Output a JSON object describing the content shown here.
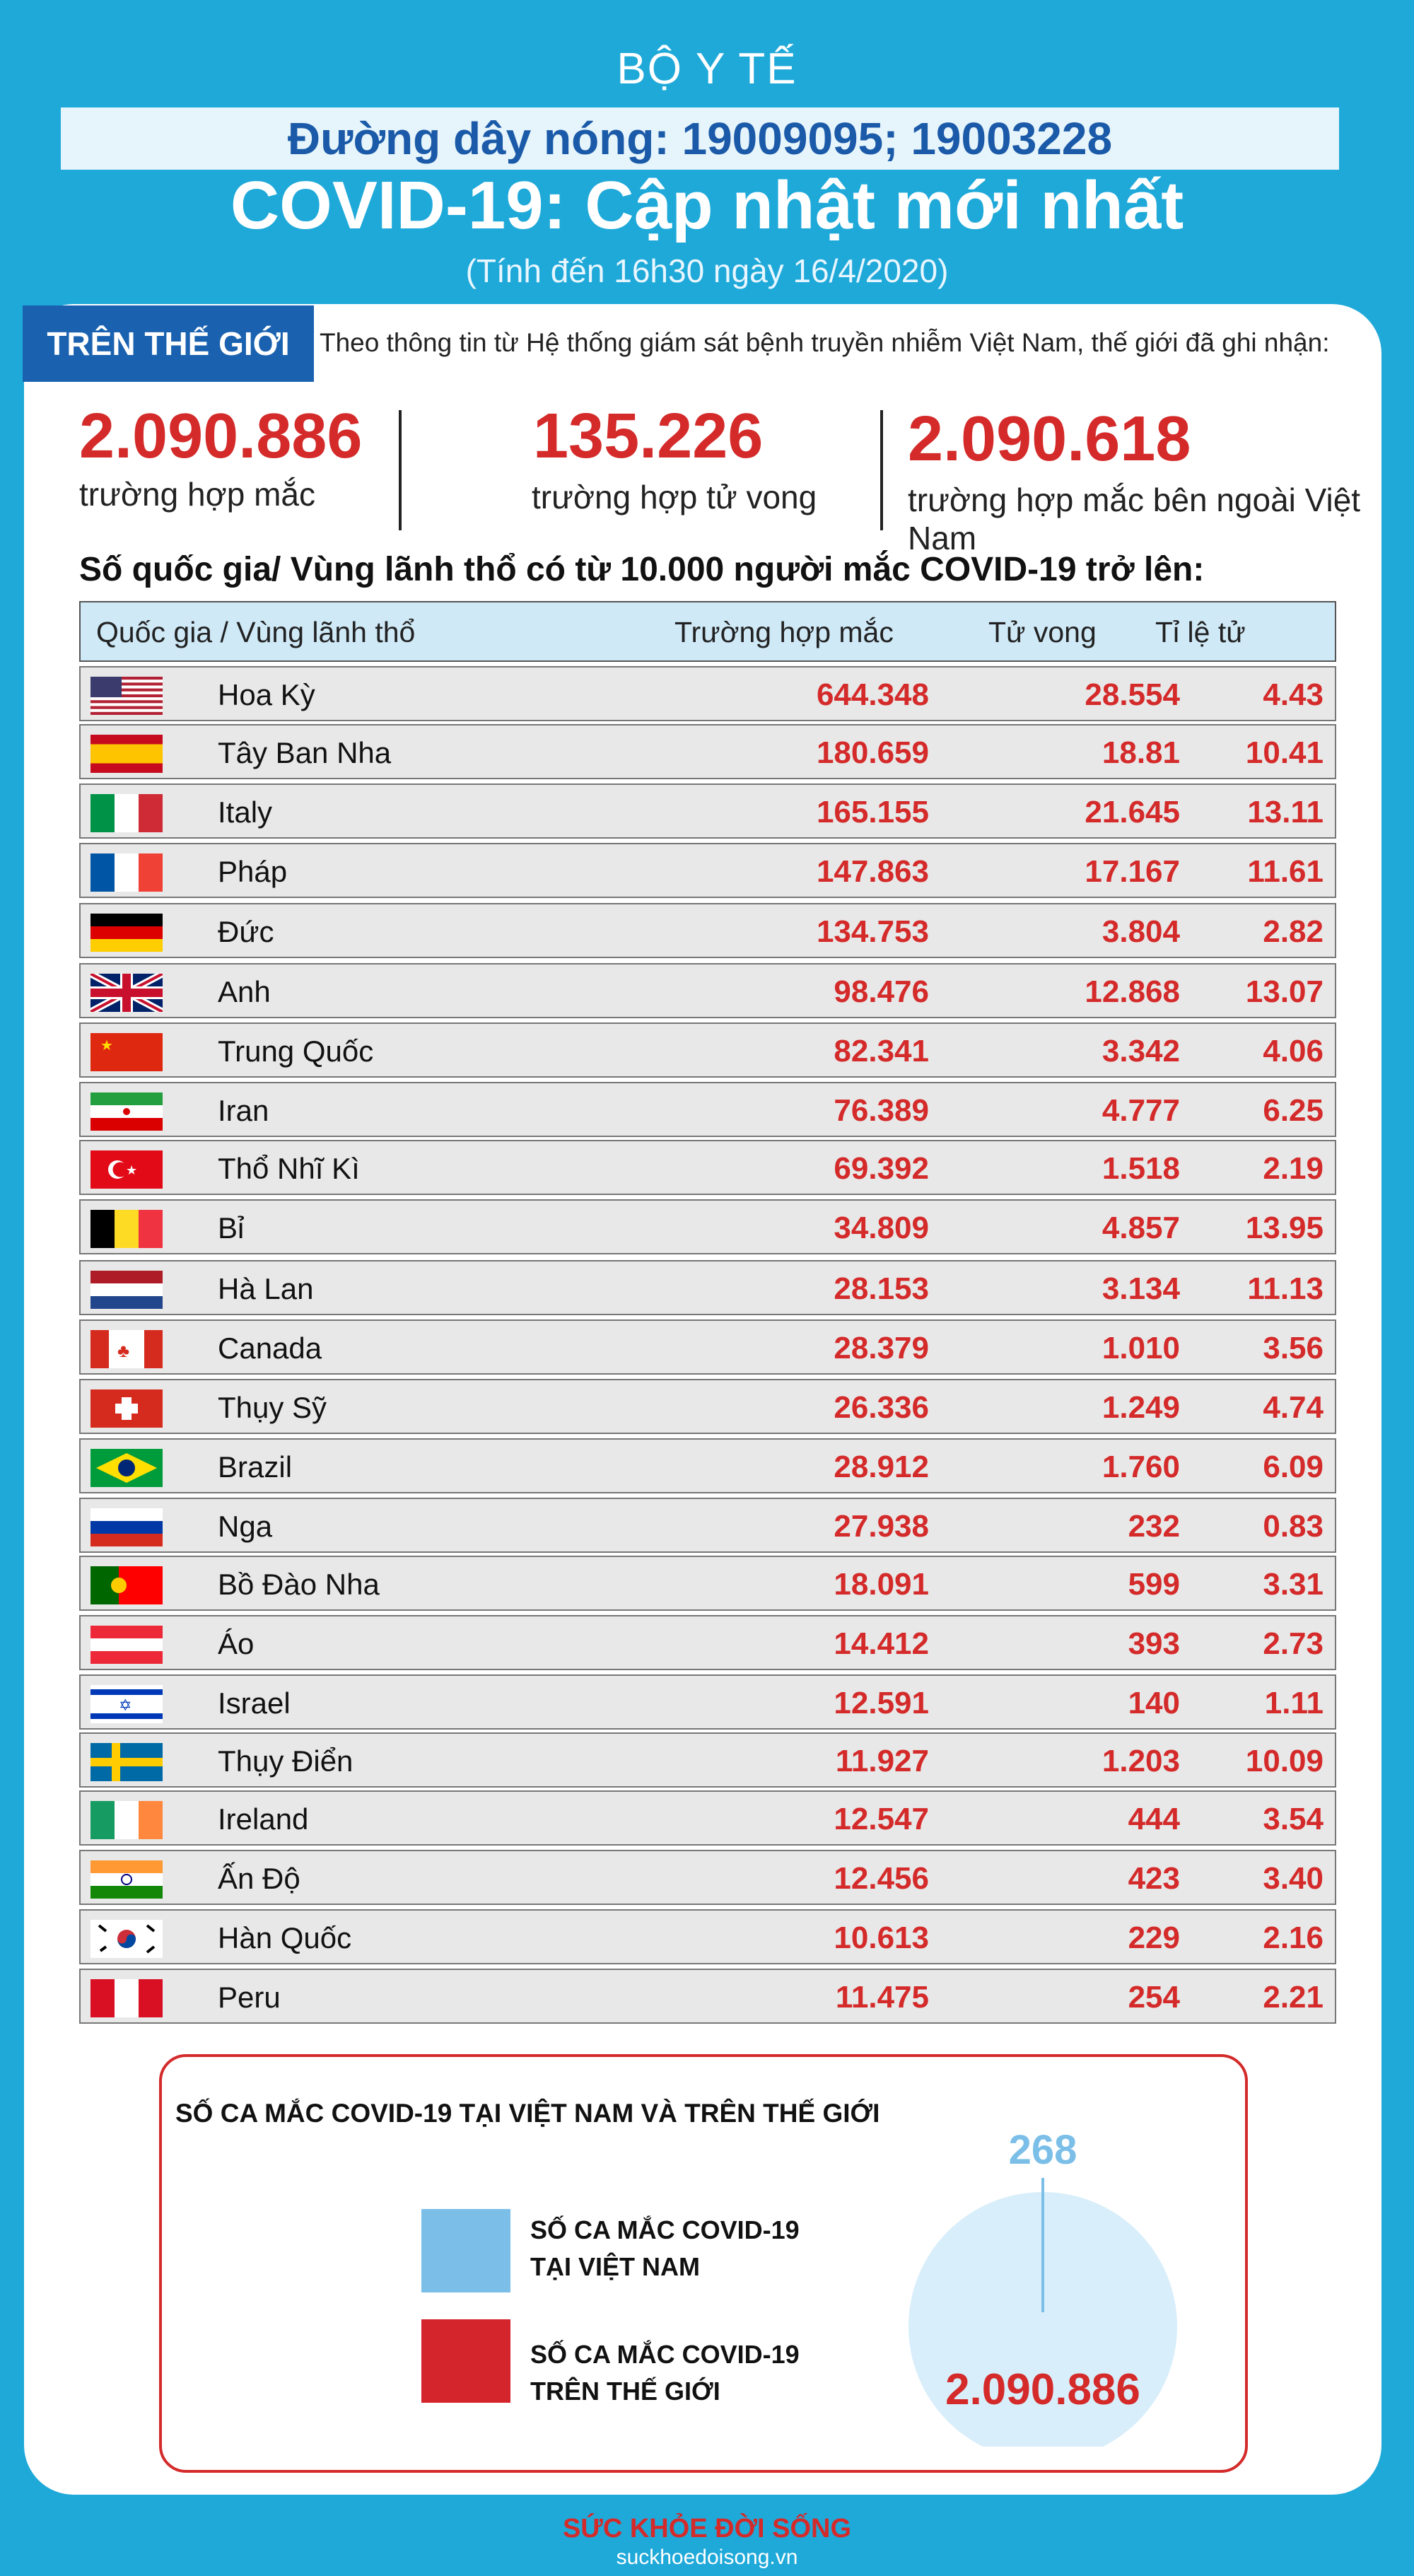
{
  "org": "BỘ Y TẾ",
  "hotline": "Đường dây nóng: 19009095; 19003228",
  "title": "COVID-19: Cập nhật mới nhất",
  "subtitle": "(Tính đến 16h30 ngày 16/4/2020)",
  "world_tab": "TRÊN THẾ GIỚI",
  "intro": "Theo thông tin từ Hệ thống giám sát bệnh truyền nhiễm Việt Nam, thế giới đã ghi nhận:",
  "stats": [
    {
      "value": "2.090.886",
      "label": "trường hợp mắc"
    },
    {
      "value": "135.226",
      "label": "trường hợp tử vong"
    },
    {
      "value": "2.090.618",
      "label": "trường hợp mắc bên ngoài Việt Nam"
    }
  ],
  "section_title": "Số quốc gia/ Vùng lãnh thổ có từ 10.000 người mắc COVID-19 trở lên:",
  "table": {
    "headers": [
      "Quốc gia / Vùng lãnh thổ",
      "Trường hợp mắc",
      "Tử vong",
      "Tỉ lệ tử vong(%)"
    ],
    "rows": [
      {
        "name": "Hoa Kỳ",
        "cases": "644.348",
        "deaths": "28.554",
        "rate": "4.43"
      },
      {
        "name": "Tây Ban Nha",
        "cases": "180.659",
        "deaths": "18.81",
        "rate": "10.41"
      },
      {
        "name": "Italy",
        "cases": "165.155",
        "deaths": "21.645",
        "rate": "13.11"
      },
      {
        "name": "Pháp",
        "cases": "147.863",
        "deaths": "17.167",
        "rate": "11.61"
      },
      {
        "name": "Đức",
        "cases": "134.753",
        "deaths": "3.804",
        "rate": "2.82"
      },
      {
        "name": "Anh",
        "cases": "98.476",
        "deaths": "12.868",
        "rate": "13.07"
      },
      {
        "name": "Trung Quốc",
        "cases": "82.341",
        "deaths": "3.342",
        "rate": "4.06"
      },
      {
        "name": "Iran",
        "cases": "76.389",
        "deaths": "4.777",
        "rate": "6.25"
      },
      {
        "name": "Thổ Nhĩ Kì",
        "cases": "69.392",
        "deaths": "1.518",
        "rate": "2.19"
      },
      {
        "name": "Bỉ",
        "cases": "34.809",
        "deaths": "4.857",
        "rate": "13.95"
      },
      {
        "name": "Hà Lan",
        "cases": "28.153",
        "deaths": "3.134",
        "rate": "11.13"
      },
      {
        "name": "Canada",
        "cases": "28.379",
        "deaths": "1.010",
        "rate": "3.56"
      },
      {
        "name": "Thụy Sỹ",
        "cases": "26.336",
        "deaths": "1.249",
        "rate": "4.74"
      },
      {
        "name": "Brazil",
        "cases": "28.912",
        "deaths": "1.760",
        "rate": "6.09"
      },
      {
        "name": "Nga",
        "cases": "27.938",
        "deaths": "232",
        "rate": "0.83"
      },
      {
        "name": "Bồ Đào Nha",
        "cases": "18.091",
        "deaths": "599",
        "rate": "3.31"
      },
      {
        "name": "Áo",
        "cases": "14.412",
        "deaths": "393",
        "rate": "2.73"
      },
      {
        "name": "Israel",
        "cases": "12.591",
        "deaths": "140",
        "rate": "1.11"
      },
      {
        "name": "Thụy Điển",
        "cases": "11.927",
        "deaths": "1.203",
        "rate": "10.09"
      },
      {
        "name": "Ireland",
        "cases": "12.547",
        "deaths": "444",
        "rate": "3.54"
      },
      {
        "name": "Ấn Độ",
        "cases": "12.456",
        "deaths": "423",
        "rate": "3.40"
      },
      {
        "name": "Hàn Quốc",
        "cases": "10.613",
        "deaths": "229",
        "rate": "2.16"
      },
      {
        "name": "Peru",
        "cases": "11.475",
        "deaths": "254",
        "rate": "2.21"
      }
    ]
  },
  "comparison": {
    "title": "SỐ CA MẮC COVID-19 TẠI VIỆT NAM VÀ TRÊN THẾ GIỚI",
    "legend": [
      {
        "line1": "SỐ CA MẮC COVID-19",
        "line2": "TẠI VIỆT NAM",
        "color": "#7bbfe8"
      },
      {
        "line1": "SỐ CA MẮC COVID-19",
        "line2": "TRÊN THẾ GIỚI",
        "color": "#d4242c"
      }
    ],
    "vietnam_value": "268",
    "world_value": "2.090.886",
    "circle_color": "#d8eefa"
  },
  "brand": "SỨC KHỎE ĐỜI SỐNG",
  "site": "suckhoedoisong.vn",
  "colors": {
    "accent_red": "#d42a2a",
    "header_blue": "#1a62b0",
    "background": "#1fa9d9"
  }
}
